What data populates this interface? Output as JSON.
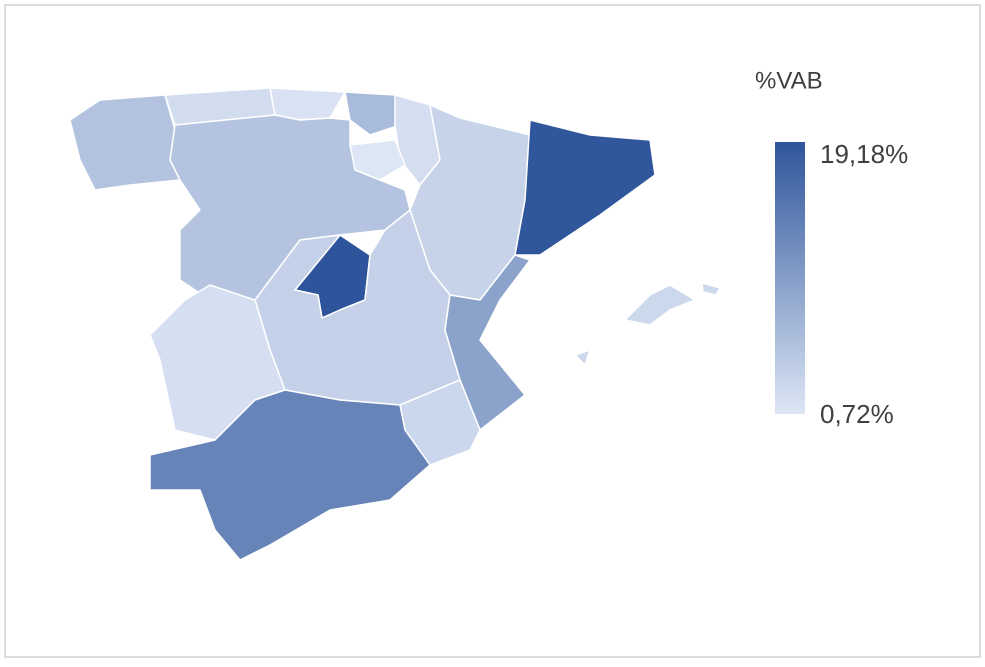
{
  "map": {
    "legend": {
      "title": "%VAB",
      "max": {
        "value": 19.18,
        "label": "19,18%"
      },
      "min": {
        "value": 0.72,
        "label": "0,72%"
      },
      "color_max": "#2e559b",
      "color_min": "#dde6f5"
    },
    "regions": [
      {
        "value": 5.2
      },
      {
        "value": 2.0
      },
      {
        "value": 1.2
      },
      {
        "value": 6.2
      },
      {
        "value": 1.7
      },
      {
        "value": 0.72
      },
      {
        "value": 5.0
      },
      {
        "value": 3.1
      },
      {
        "value": 19.0
      },
      {
        "value": 19.18
      },
      {
        "value": 3.4
      },
      {
        "value": 1.6
      },
      {
        "value": 9.4
      },
      {
        "value": 2.6
      },
      {
        "value": 13.2
      },
      {
        "value": 2.5
      }
    ]
  }
}
